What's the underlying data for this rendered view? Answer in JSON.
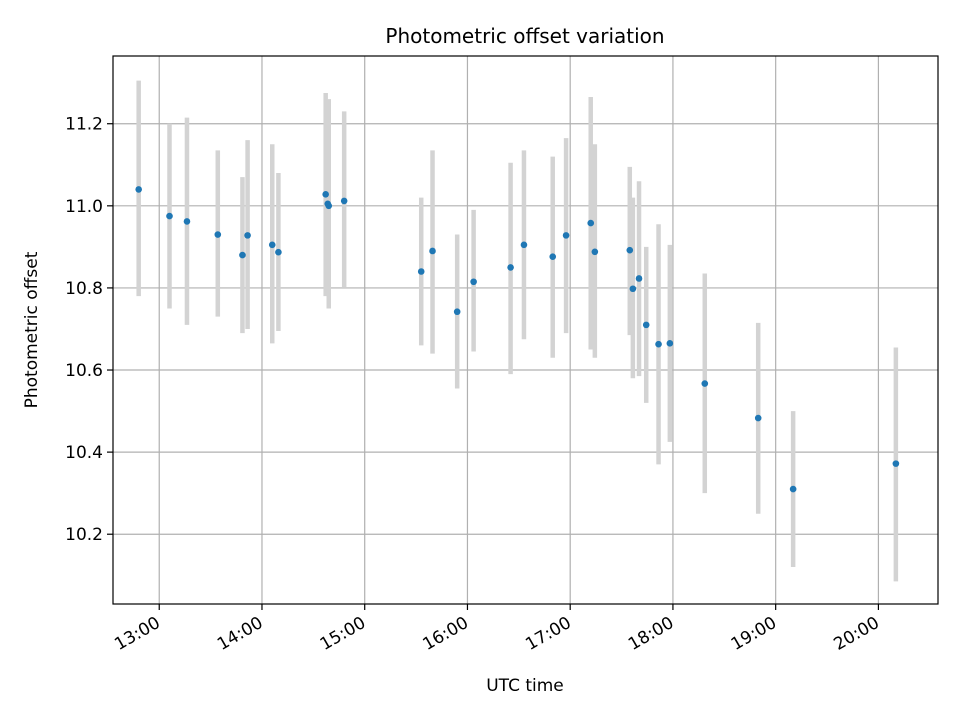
{
  "chart_data": {
    "type": "scatter",
    "title": "Photometric offset variation",
    "xlabel": "UTC time",
    "ylabel": "Photometric offset",
    "xlim": [
      12.55,
      20.58
    ],
    "ylim": [
      10.03,
      11.365
    ],
    "grid": true,
    "x_ticks": [
      {
        "value": 13,
        "label": "13:00"
      },
      {
        "value": 14,
        "label": "14:00"
      },
      {
        "value": 15,
        "label": "15:00"
      },
      {
        "value": 16,
        "label": "16:00"
      },
      {
        "value": 17,
        "label": "17:00"
      },
      {
        "value": 18,
        "label": "18:00"
      },
      {
        "value": 19,
        "label": "19:00"
      },
      {
        "value": 20,
        "label": "20:00"
      }
    ],
    "y_ticks": [
      {
        "value": 10.2,
        "label": "10.2"
      },
      {
        "value": 10.4,
        "label": "10.4"
      },
      {
        "value": 10.6,
        "label": "10.6"
      },
      {
        "value": 10.8,
        "label": "10.8"
      },
      {
        "value": 11.0,
        "label": "11.0"
      },
      {
        "value": 11.2,
        "label": "11.2"
      }
    ],
    "colors": {
      "point": "#1f77b4",
      "errorbar": "#d3d3d3",
      "grid": "#b0b0b0",
      "axes": "#000000"
    },
    "points": [
      {
        "x": 12.8,
        "y": 11.04,
        "low": 10.78,
        "high": 11.305
      },
      {
        "x": 13.1,
        "y": 10.975,
        "low": 10.75,
        "high": 11.2
      },
      {
        "x": 13.27,
        "y": 10.962,
        "low": 10.71,
        "high": 11.215
      },
      {
        "x": 13.57,
        "y": 10.93,
        "low": 10.73,
        "high": 11.135
      },
      {
        "x": 13.81,
        "y": 10.88,
        "low": 10.69,
        "high": 11.07
      },
      {
        "x": 13.86,
        "y": 10.928,
        "low": 10.7,
        "high": 11.16
      },
      {
        "x": 14.1,
        "y": 10.905,
        "low": 10.665,
        "high": 11.15
      },
      {
        "x": 14.16,
        "y": 10.887,
        "low": 10.695,
        "high": 11.08
      },
      {
        "x": 14.62,
        "y": 11.028,
        "low": 10.78,
        "high": 11.275
      },
      {
        "x": 14.65,
        "y": 11.0,
        "low": 10.75,
        "high": 11.26
      },
      {
        "x": 14.64,
        "y": 11.005,
        "low": 10.8,
        "high": 11.2
      },
      {
        "x": 14.8,
        "y": 11.012,
        "low": 10.8,
        "high": 11.23
      },
      {
        "x": 15.55,
        "y": 10.84,
        "low": 10.66,
        "high": 11.02
      },
      {
        "x": 15.66,
        "y": 10.89,
        "low": 10.64,
        "high": 11.135
      },
      {
        "x": 15.9,
        "y": 10.742,
        "low": 10.555,
        "high": 10.93
      },
      {
        "x": 16.06,
        "y": 10.815,
        "low": 10.645,
        "high": 10.99
      },
      {
        "x": 16.42,
        "y": 10.85,
        "low": 10.59,
        "high": 11.105
      },
      {
        "x": 16.55,
        "y": 10.905,
        "low": 10.675,
        "high": 11.135
      },
      {
        "x": 16.83,
        "y": 10.876,
        "low": 10.63,
        "high": 11.12
      },
      {
        "x": 16.96,
        "y": 10.928,
        "low": 10.69,
        "high": 11.165
      },
      {
        "x": 17.2,
        "y": 10.958,
        "low": 10.65,
        "high": 11.265
      },
      {
        "x": 17.24,
        "y": 10.888,
        "low": 10.63,
        "high": 11.15
      },
      {
        "x": 17.58,
        "y": 10.892,
        "low": 10.685,
        "high": 11.095
      },
      {
        "x": 17.61,
        "y": 10.798,
        "low": 10.58,
        "high": 11.02
      },
      {
        "x": 17.67,
        "y": 10.823,
        "low": 10.585,
        "high": 11.06
      },
      {
        "x": 17.74,
        "y": 10.71,
        "low": 10.52,
        "high": 10.9
      },
      {
        "x": 17.86,
        "y": 10.663,
        "low": 10.37,
        "high": 10.955
      },
      {
        "x": 17.97,
        "y": 10.665,
        "low": 10.425,
        "high": 10.905
      },
      {
        "x": 18.31,
        "y": 10.567,
        "low": 10.3,
        "high": 10.835
      },
      {
        "x": 18.83,
        "y": 10.483,
        "low": 10.25,
        "high": 10.715
      },
      {
        "x": 19.17,
        "y": 10.31,
        "low": 10.12,
        "high": 10.5
      },
      {
        "x": 20.17,
        "y": 10.372,
        "low": 10.085,
        "high": 10.655
      }
    ]
  }
}
